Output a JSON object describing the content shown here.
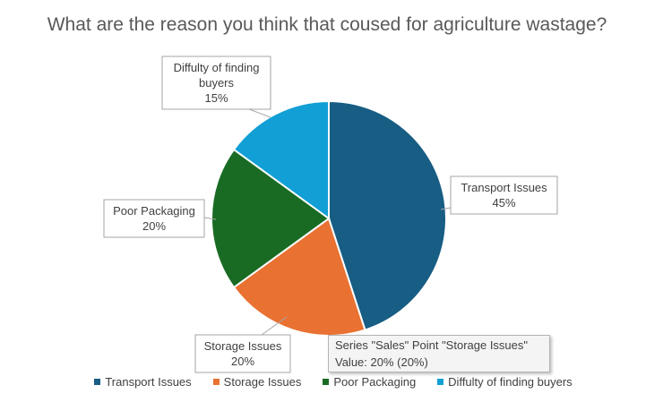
{
  "chart_data": {
    "type": "pie",
    "title": "What are the reason you think that coused for agriculture wastage?",
    "categories": [
      "Transport Issues",
      "Storage Issues",
      "Poor Packaging",
      "Diffulty of finding buyers"
    ],
    "values": [
      45,
      20,
      20,
      15
    ],
    "data_labels": [
      [
        "Transport Issues",
        "45%"
      ],
      [
        "Storage Issues",
        "20%"
      ],
      [
        "Poor Packaging",
        "20%"
      ],
      [
        "Diffulty of finding",
        "buyers",
        "15%"
      ]
    ],
    "colors": [
      "#175d84",
      "#e97132",
      "#196b24",
      "#119fd5"
    ],
    "legend_position": "bottom"
  },
  "tooltip": {
    "line1": "Series \"Sales\" Point \"Storage Issues\"",
    "line2": "Value: 20% (20%)"
  }
}
